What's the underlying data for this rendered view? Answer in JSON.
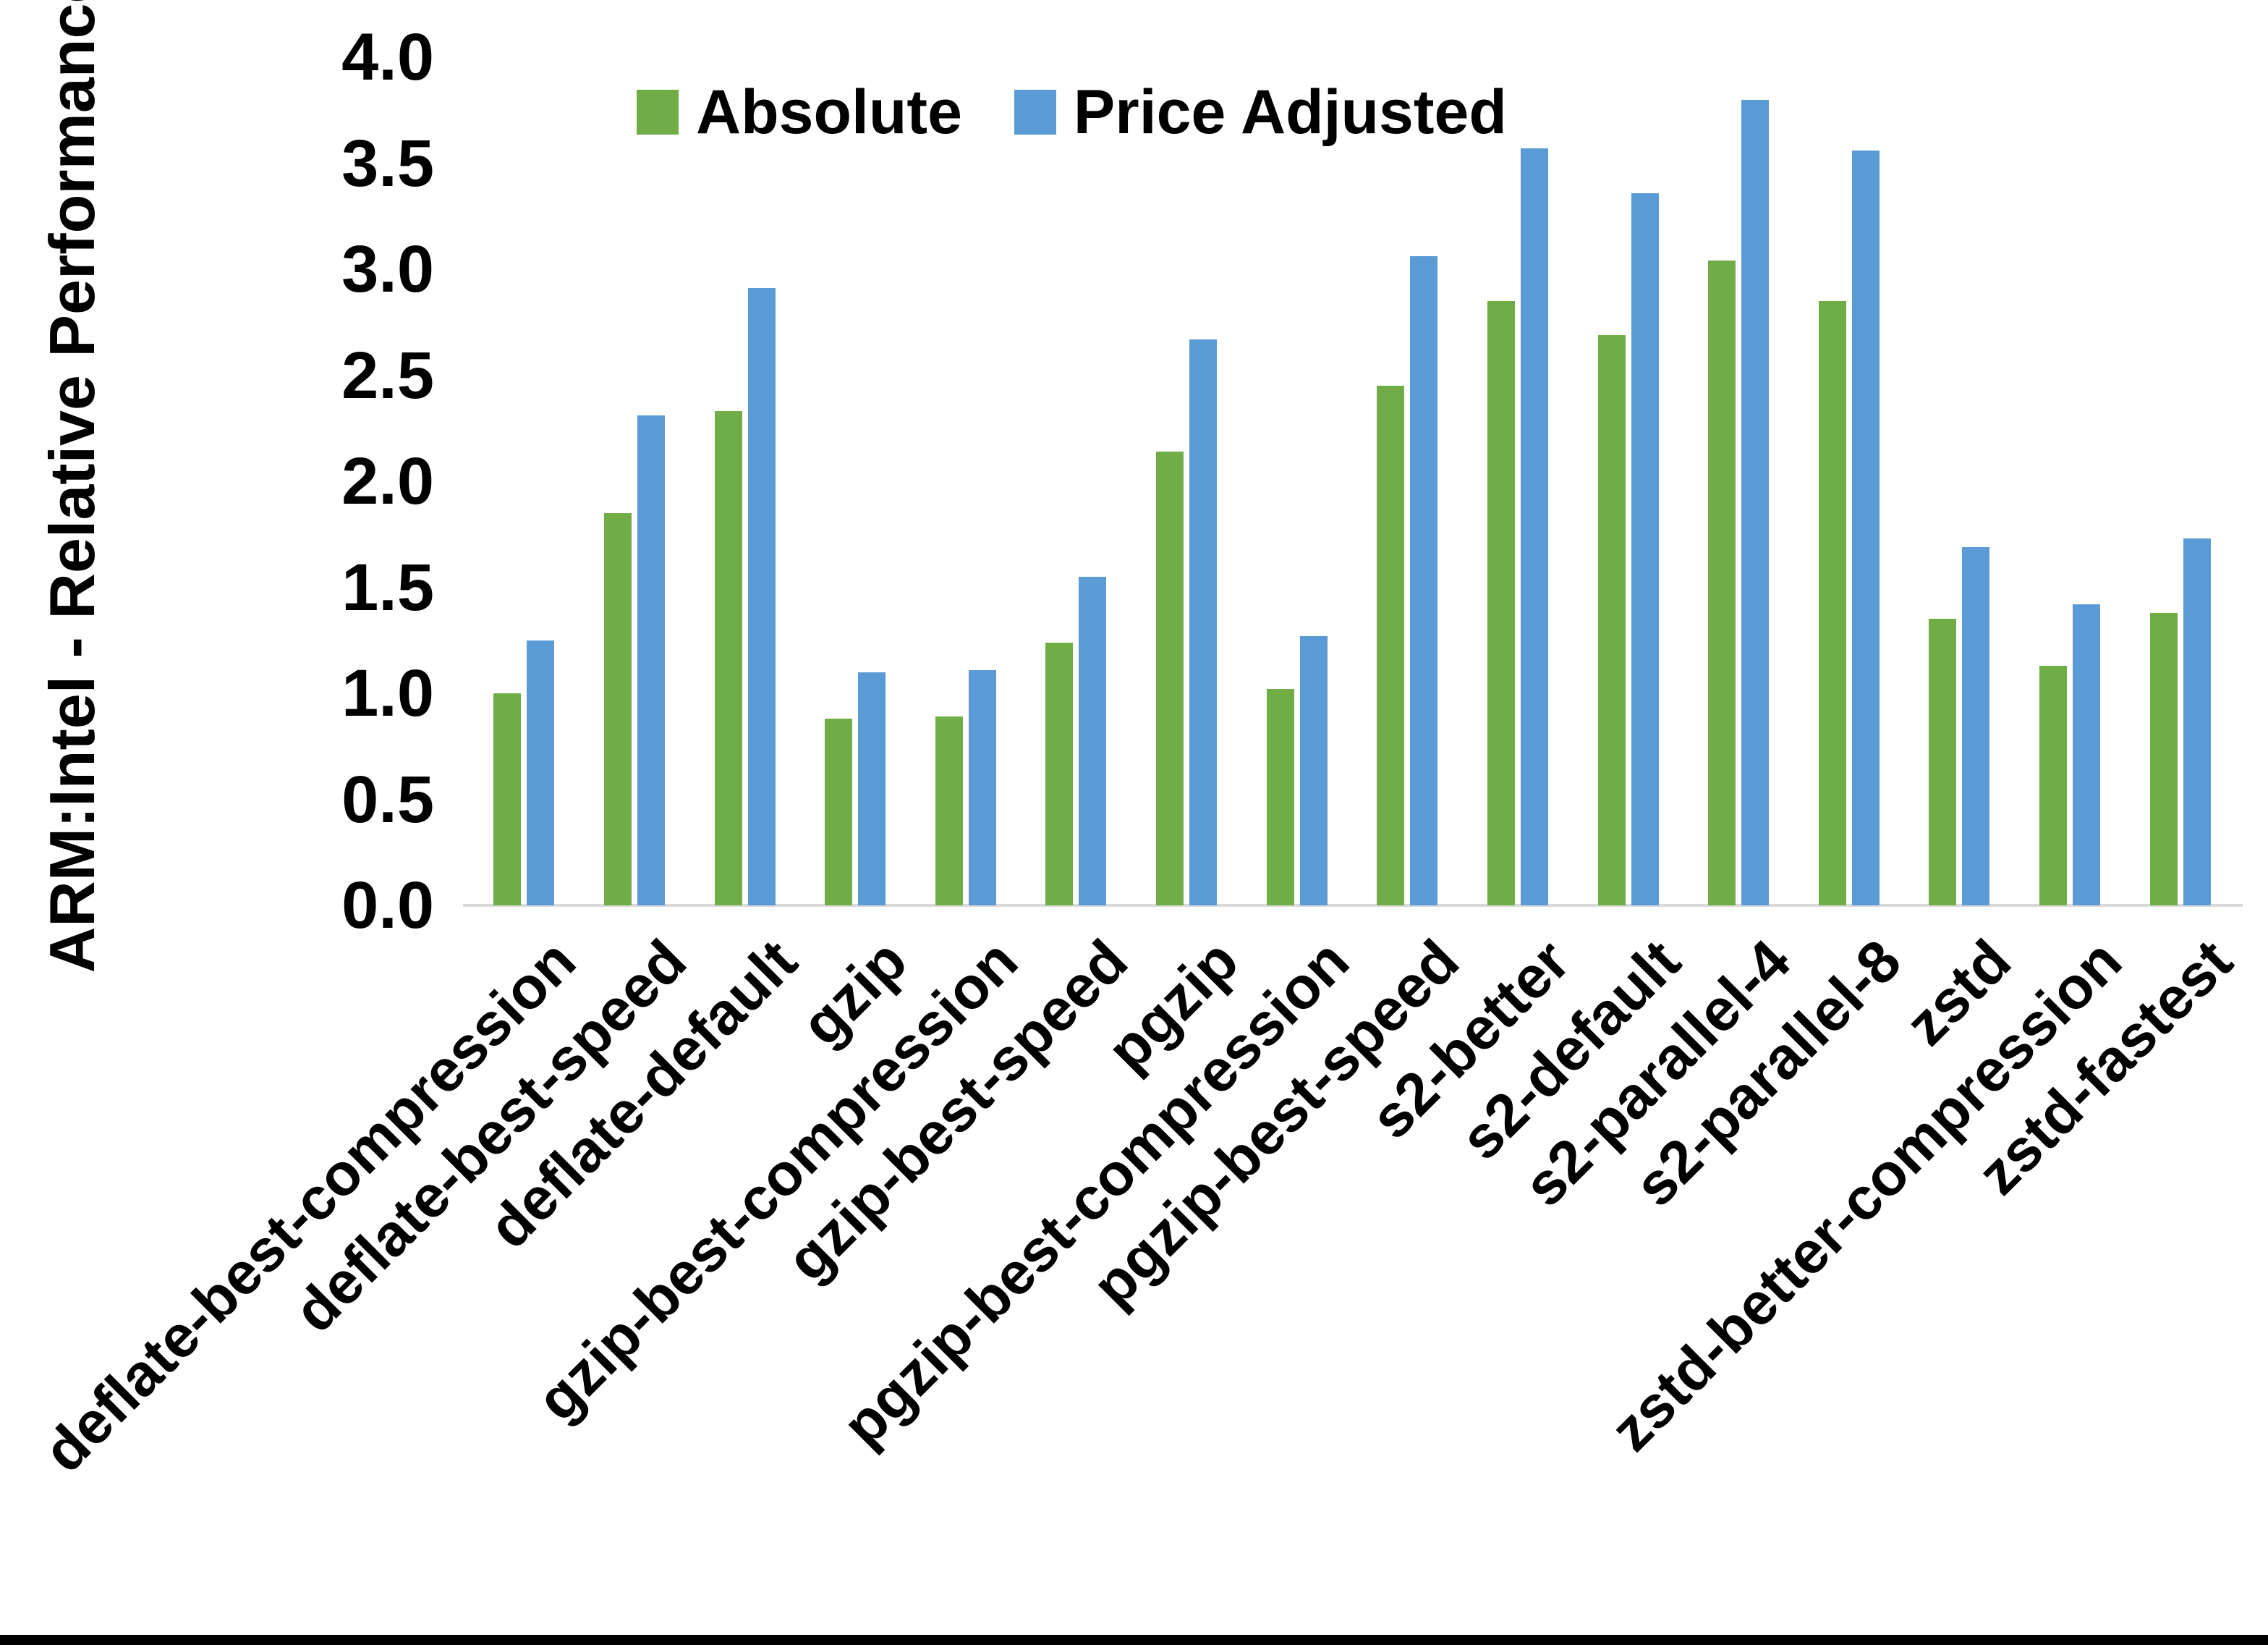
{
  "chart_data": {
    "type": "bar",
    "title": "",
    "xlabel": "",
    "ylabel": "ARM:Intel - Relative Performance",
    "ylim": [
      0.0,
      4.0
    ],
    "ytick_step": 0.5,
    "yticks": [
      "4.0",
      "3.5",
      "3.0",
      "2.5",
      "2.0",
      "1.5",
      "1.0",
      "0.5",
      "0.0"
    ],
    "grid": false,
    "legend_position": "top-center-inside",
    "x_label_rotation_deg": 45,
    "categories": [
      "deflate-best-compression",
      "deflate-best-speed",
      "deflate-default",
      "gzip",
      "gzip-best-compression",
      "gzip-best-speed",
      "pgzip",
      "pgzip-best-compression",
      "pgzip-best-speed",
      "s2-better",
      "s2-default",
      "s2-parallel-4",
      "s2-parallel-8",
      "zstd",
      "zstd-better-compression",
      "zstd-fastest"
    ],
    "series": [
      {
        "name": "Absolute",
        "color": "#70AD47",
        "values": [
          1.0,
          1.85,
          2.33,
          0.88,
          0.89,
          1.24,
          2.14,
          1.02,
          2.45,
          2.85,
          2.69,
          3.04,
          2.85,
          1.35,
          1.13,
          1.38
        ]
      },
      {
        "name": "Price Adjusted",
        "color": "#5B9BD5",
        "values": [
          1.25,
          2.31,
          2.91,
          1.1,
          1.11,
          1.55,
          2.67,
          1.27,
          3.06,
          3.57,
          3.36,
          3.8,
          3.56,
          1.69,
          1.42,
          1.73
        ]
      }
    ]
  },
  "legend": {
    "items": [
      {
        "label": "Absolute",
        "color": "#70AD47"
      },
      {
        "label": "Price Adjusted",
        "color": "#5B9BD5"
      }
    ]
  },
  "axis": {
    "y_title": "ARM:Intel - Relative Performance"
  },
  "colors": {
    "background": "#ffffff",
    "text": "#000000",
    "axis_line": "#d9d9d9",
    "bottom_border": "#000000"
  }
}
